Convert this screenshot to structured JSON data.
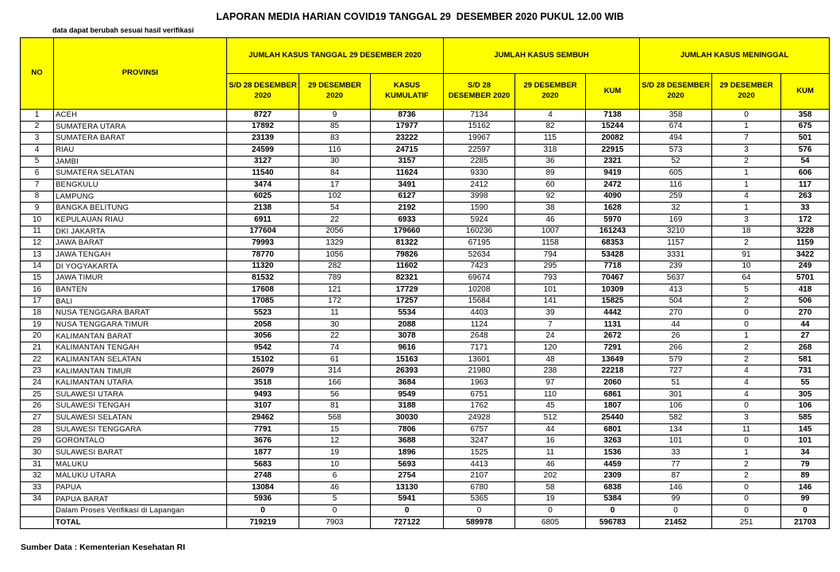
{
  "header": {
    "title": "LAPORAN MEDIA HARIAN COVID19 TANGGAL 29  DESEMBER 2020 PUKUL 12.00 WIB",
    "note": "data dapat berubah sesuai hasil verifikasi"
  },
  "table": {
    "col_no": "NO",
    "col_province": "PROVINSI",
    "groups": [
      "JUMLAH KASUS TANGGAL 29 DESEMBER 2020",
      "JUMLAH KASUS SEMBUH",
      "JUMLAH KASUS MENINGGAL"
    ],
    "subheaders": [
      "S/D 28 DESEMBER 2020",
      "29 DESEMBER 2020",
      "KASUS KUMULATIF",
      "S/D 28 DESEMBER 2020",
      "29 DESEMBER 2020",
      "KUM",
      "S/D 28 DESEMBER 2020",
      "29 DESEMBER 2020",
      "KUM"
    ],
    "rows": [
      {
        "no": 1,
        "province": "ACEH",
        "values": [
          8727,
          9,
          8736,
          7134,
          4,
          7138,
          358,
          0,
          358
        ]
      },
      {
        "no": 2,
        "province": "SUMATERA UTARA",
        "values": [
          17892,
          85,
          17977,
          15162,
          82,
          15244,
          674,
          1,
          675
        ]
      },
      {
        "no": 3,
        "province": "SUMATERA BARAT",
        "values": [
          23139,
          83,
          23222,
          19967,
          115,
          20082,
          494,
          7,
          501
        ]
      },
      {
        "no": 4,
        "province": "RIAU",
        "values": [
          24599,
          116,
          24715,
          22597,
          318,
          22915,
          573,
          3,
          576
        ]
      },
      {
        "no": 5,
        "province": "JAMBI",
        "values": [
          3127,
          30,
          3157,
          2285,
          36,
          2321,
          52,
          2,
          54
        ]
      },
      {
        "no": 6,
        "province": "SUMATERA SELATAN",
        "values": [
          11540,
          84,
          11624,
          9330,
          89,
          9419,
          605,
          1,
          606
        ]
      },
      {
        "no": 7,
        "province": "BENGKULU",
        "values": [
          3474,
          17,
          3491,
          2412,
          60,
          2472,
          116,
          1,
          117
        ]
      },
      {
        "no": 8,
        "province": "LAMPUNG",
        "values": [
          6025,
          102,
          6127,
          3998,
          92,
          4090,
          259,
          4,
          263
        ]
      },
      {
        "no": 9,
        "province": "BANGKA BELITUNG",
        "values": [
          2138,
          54,
          2192,
          1590,
          38,
          1628,
          32,
          1,
          33
        ]
      },
      {
        "no": 10,
        "province": "KEPULAUAN RIAU",
        "values": [
          6911,
          22,
          6933,
          5924,
          46,
          5970,
          169,
          3,
          172
        ]
      },
      {
        "no": 11,
        "province": "DKI JAKARTA",
        "values": [
          177604,
          2056,
          179660,
          160236,
          1007,
          161243,
          3210,
          18,
          3228
        ]
      },
      {
        "no": 12,
        "province": "JAWA BARAT",
        "values": [
          79993,
          1329,
          81322,
          67195,
          1158,
          68353,
          1157,
          2,
          1159
        ]
      },
      {
        "no": 13,
        "province": "JAWA TENGAH",
        "values": [
          78770,
          1056,
          79826,
          52634,
          794,
          53428,
          3331,
          91,
          3422
        ]
      },
      {
        "no": 14,
        "province": "DI YOGYAKARTA",
        "values": [
          11320,
          282,
          11602,
          7423,
          295,
          7718,
          239,
          10,
          249
        ]
      },
      {
        "no": 15,
        "province": "JAWA TIMUR",
        "values": [
          81532,
          789,
          82321,
          69674,
          793,
          70467,
          5637,
          64,
          5701
        ]
      },
      {
        "no": 16,
        "province": "BANTEN",
        "values": [
          17608,
          121,
          17729,
          10208,
          101,
          10309,
          413,
          5,
          418
        ]
      },
      {
        "no": 17,
        "province": "BALI",
        "values": [
          17085,
          172,
          17257,
          15684,
          141,
          15825,
          504,
          2,
          506
        ]
      },
      {
        "no": 18,
        "province": "NUSA TENGGARA BARAT",
        "values": [
          5523,
          11,
          5534,
          4403,
          39,
          4442,
          270,
          0,
          270
        ]
      },
      {
        "no": 19,
        "province": "NUSA TENGGARA TIMUR",
        "values": [
          2058,
          30,
          2088,
          1124,
          7,
          1131,
          44,
          0,
          44
        ]
      },
      {
        "no": 20,
        "province": "KALIMANTAN BARAT",
        "values": [
          3056,
          22,
          3078,
          2648,
          24,
          2672,
          26,
          1,
          27
        ]
      },
      {
        "no": 21,
        "province": "KALIMANTAN TENGAH",
        "values": [
          9542,
          74,
          9616,
          7171,
          120,
          7291,
          266,
          2,
          268
        ]
      },
      {
        "no": 22,
        "province": "KALIMANTAN SELATAN",
        "values": [
          15102,
          61,
          15163,
          13601,
          48,
          13649,
          579,
          2,
          581
        ]
      },
      {
        "no": 23,
        "province": "KALIMANTAN TIMUR",
        "values": [
          26079,
          314,
          26393,
          21980,
          238,
          22218,
          727,
          4,
          731
        ]
      },
      {
        "no": 24,
        "province": "KALIMANTAN UTARA",
        "values": [
          3518,
          166,
          3684,
          1963,
          97,
          2060,
          51,
          4,
          55
        ]
      },
      {
        "no": 25,
        "province": "SULAWESI UTARA",
        "values": [
          9493,
          56,
          9549,
          6751,
          110,
          6861,
          301,
          4,
          305
        ]
      },
      {
        "no": 26,
        "province": "SULAWESI TENGAH",
        "values": [
          3107,
          81,
          3188,
          1762,
          45,
          1807,
          106,
          0,
          106
        ]
      },
      {
        "no": 27,
        "province": "SULAWESI SELATAN",
        "values": [
          29462,
          568,
          30030,
          24928,
          512,
          25440,
          582,
          3,
          585
        ]
      },
      {
        "no": 28,
        "province": "SULAWESI TENGGARA",
        "values": [
          7791,
          15,
          7806,
          6757,
          44,
          6801,
          134,
          11,
          145
        ]
      },
      {
        "no": 29,
        "province": "GORONTALO",
        "values": [
          3676,
          12,
          3688,
          3247,
          16,
          3263,
          101,
          0,
          101
        ]
      },
      {
        "no": 30,
        "province": "SULAWESI BARAT",
        "values": [
          1877,
          19,
          1896,
          1525,
          11,
          1536,
          33,
          1,
          34
        ]
      },
      {
        "no": 31,
        "province": "MALUKU",
        "values": [
          5683,
          10,
          5693,
          4413,
          46,
          4459,
          77,
          2,
          79
        ]
      },
      {
        "no": 32,
        "province": "MALUKU UTARA",
        "values": [
          2748,
          6,
          2754,
          2107,
          202,
          2309,
          87,
          2,
          89
        ]
      },
      {
        "no": 33,
        "province": "PAPUA",
        "values": [
          13084,
          46,
          13130,
          6780,
          58,
          6838,
          146,
          0,
          146
        ]
      },
      {
        "no": 34,
        "province": "PAPUA BARAT",
        "values": [
          5936,
          5,
          5941,
          5365,
          19,
          5384,
          99,
          0,
          99
        ]
      }
    ],
    "verification": {
      "province": "Dalam Proses Verifikasi di Lapangan",
      "values": [
        0,
        0,
        0,
        0,
        0,
        0,
        0,
        0,
        0
      ]
    },
    "total": {
      "province": "TOTAL",
      "values": [
        719219,
        7903,
        727122,
        589978,
        6805,
        596783,
        21452,
        251,
        21703
      ]
    }
  },
  "footer": {
    "source": "Sumber Data : Kementerian Kesehatan RI"
  }
}
